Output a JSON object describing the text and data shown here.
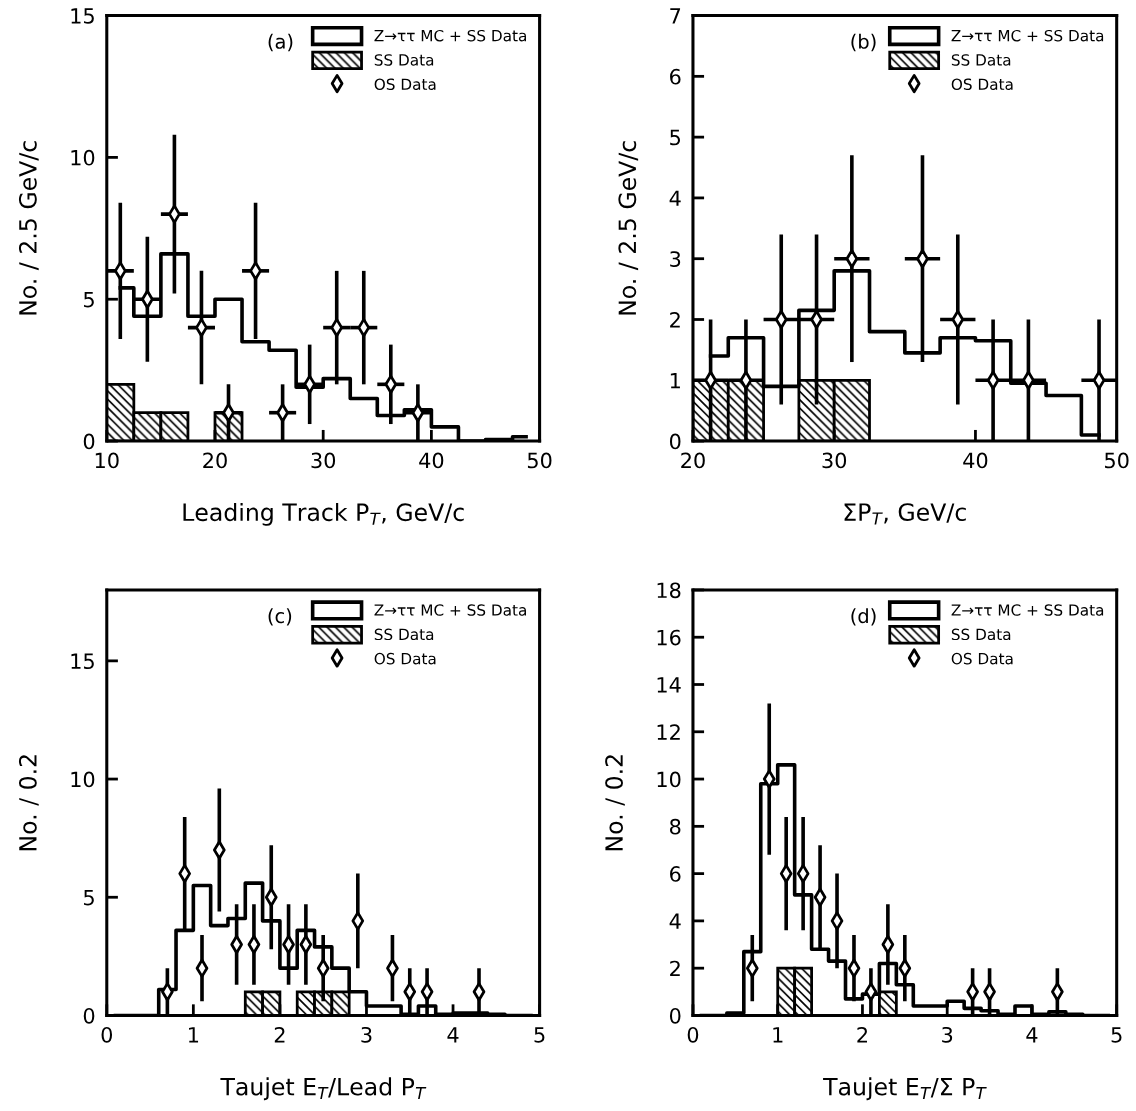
{
  "chart_data": [
    {
      "type": "histogram",
      "xlabel": "Leading Track P$_{T}$, GeV/c",
      "ylabel": "No. / 2.5 GeV/c",
      "annotations": [
        "(a)"
      ],
      "bins": [
        10,
        12.5,
        15,
        17.5,
        20,
        22.5,
        25,
        27.5,
        30,
        32.5,
        35,
        37.5,
        40,
        42.5,
        45,
        47.5,
        50
      ],
      "series": [
        {
          "name": "Z→ττ MC + SS Data",
          "type": "step",
          "color": "#000000",
          "x": [
            11.25,
            13.75,
            16.25,
            18.75,
            21.25,
            23.75,
            26.25,
            28.75,
            31.25,
            33.75,
            36.25,
            38.75,
            41.25,
            43.75,
            46.25,
            48.75
          ],
          "values": [
            5.4,
            4.4,
            6.6,
            4.4,
            5.0,
            3.5,
            3.2,
            1.9,
            2.2,
            1.5,
            0.9,
            1.1,
            0.5,
            0,
            0.05,
            0.15
          ]
        },
        {
          "name": "SS Data",
          "type": "histogram",
          "color": "#000000",
          "values": [
            2,
            1,
            1,
            0,
            1,
            0,
            0,
            0,
            0,
            0,
            0,
            0,
            0,
            0,
            0,
            0
          ]
        },
        {
          "name": "OS Data",
          "type": "scatter",
          "color": "#000000",
          "marker": "diamond",
          "x": [
            11.25,
            13.75,
            16.25,
            18.75,
            21.25,
            23.75,
            26.25,
            28.75,
            31.25,
            33.75,
            36.25,
            38.75
          ],
          "values": [
            6,
            5,
            8,
            4,
            1,
            6,
            1,
            2,
            4,
            4,
            2,
            1
          ],
          "errors": [
            2.4,
            2.2,
            2.8,
            2,
            1,
            2.4,
            1,
            1.4,
            2,
            2,
            1.4,
            1
          ],
          "xerrors": [
            1.25,
            1.25,
            1.25,
            1.25,
            1.25,
            1.25,
            1.25,
            1.25,
            1.25,
            1.25,
            1.25,
            1.25
          ]
        }
      ],
      "xlim": [
        10,
        50
      ],
      "ylim": [
        0,
        15
      ],
      "xticks": [
        10,
        20,
        30,
        40,
        50
      ],
      "yticks": [
        0,
        5,
        10,
        15
      ],
      "legend": "top right",
      "grid": false
    },
    {
      "type": "histogram",
      "xlabel": "ΣP$_{T}$, GeV/c",
      "ylabel": "No. / 2.5 GeV/c",
      "annotations": [
        "(b)"
      ],
      "bins": [
        20,
        22.5,
        25,
        27.5,
        30,
        32.5,
        35,
        37.5,
        40,
        42.5,
        45,
        47.5,
        50
      ],
      "series": [
        {
          "name": "Z→ττ MC + SS Data",
          "type": "step",
          "color": "#000000",
          "x": [
            21.25,
            23.75,
            26.25,
            28.75,
            31.25,
            33.75,
            36.25,
            38.75,
            41.25,
            43.75,
            46.25,
            48.75
          ],
          "values": [
            1.4,
            1.7,
            0.9,
            2.15,
            2.8,
            1.8,
            1.45,
            1.7,
            1.65,
            0.95,
            0.75,
            0.1
          ]
        },
        {
          "name": "SS Data",
          "type": "histogram",
          "color": "#000000",
          "values": [
            1,
            1,
            0,
            1,
            1,
            0,
            0,
            0,
            0,
            0,
            0,
            0
          ]
        },
        {
          "name": "OS Data",
          "type": "scatter",
          "color": "#000000",
          "marker": "diamond",
          "x": [
            21.25,
            23.75,
            26.25,
            28.75,
            31.25,
            36.25,
            38.75,
            41.25,
            43.75,
            48.75
          ],
          "values": [
            1,
            1,
            2,
            2,
            3,
            3,
            2,
            1,
            1,
            1
          ],
          "errors": [
            1,
            1,
            1.4,
            1.4,
            1.7,
            1.7,
            1.4,
            1,
            1,
            1
          ],
          "xerrors": [
            1.25,
            1.25,
            1.25,
            1.25,
            1.25,
            1.25,
            1.25,
            1.25,
            1.25,
            1.25
          ]
        }
      ],
      "xlim": [
        20,
        50
      ],
      "ylim": [
        0,
        7
      ],
      "xticks": [
        20,
        30,
        40,
        50
      ],
      "yticks": [
        0,
        1,
        2,
        3,
        4,
        5,
        6,
        7
      ],
      "legend": "top right",
      "grid": false
    },
    {
      "type": "histogram",
      "xlabel": "Taujet E$_{T}$/Lead P$_{T}$",
      "ylabel": "No. / 0.2",
      "annotations": [
        "(c)"
      ],
      "bins": [
        0,
        0.2,
        0.4,
        0.6,
        0.8,
        1.0,
        1.2,
        1.4,
        1.6,
        1.8,
        2.0,
        2.2,
        2.4,
        2.6,
        2.8,
        3.0,
        3.2,
        3.4,
        3.6,
        3.8,
        4.0,
        4.2,
        4.4,
        4.6,
        4.8,
        5.0
      ],
      "series": [
        {
          "name": "Z→ττ MC + SS Data",
          "type": "step",
          "color": "#000000",
          "x": [
            0.1,
            0.3,
            0.5,
            0.7,
            0.9,
            1.1,
            1.3,
            1.5,
            1.7,
            1.9,
            2.1,
            2.3,
            2.5,
            2.7,
            2.9,
            3.1,
            3.3,
            3.5,
            3.7,
            3.9,
            4.1,
            4.3,
            4.5,
            4.7,
            4.9
          ],
          "values": [
            0,
            0,
            0,
            1.1,
            3.6,
            5.5,
            3.8,
            4.1,
            5.6,
            4.0,
            2.0,
            3.6,
            2.9,
            2.0,
            1.0,
            0.4,
            0.4,
            0.05,
            0.4,
            0.05,
            0.1,
            0.1,
            0.05,
            0,
            0
          ]
        },
        {
          "name": "SS Data",
          "type": "histogram",
          "color": "#000000",
          "values": [
            0,
            0,
            0,
            0,
            0,
            0,
            0,
            0,
            1,
            1,
            0,
            1,
            1,
            1,
            0,
            0,
            0,
            0,
            0,
            0,
            0,
            0,
            0,
            0,
            0
          ]
        },
        {
          "name": "OS Data",
          "type": "scatter",
          "color": "#000000",
          "marker": "diamond",
          "x": [
            0.7,
            0.9,
            1.1,
            1.3,
            1.5,
            1.7,
            1.9,
            2.1,
            2.3,
            2.5,
            2.9,
            3.3,
            3.5,
            3.7,
            4.3
          ],
          "values": [
            1,
            6,
            2,
            7,
            3,
            3,
            5,
            3,
            3,
            2,
            4,
            2,
            1,
            1,
            1
          ],
          "errors": [
            1,
            2.4,
            1.4,
            2.6,
            1.7,
            1.7,
            2.2,
            1.7,
            1.7,
            1.4,
            2,
            1.4,
            1,
            1,
            1
          ]
        }
      ],
      "xlim": [
        0,
        5
      ],
      "ylim": [
        0,
        18
      ],
      "xticks": [
        0,
        1,
        2,
        3,
        4,
        5
      ],
      "yticks": [
        0,
        5,
        10,
        15
      ],
      "legend": "top right",
      "grid": false
    },
    {
      "type": "histogram",
      "xlabel": "Taujet E$_{T}$/Σ P$_{T}$",
      "ylabel": "No. / 0.2",
      "annotations": [
        "(d)"
      ],
      "bins": [
        0,
        0.2,
        0.4,
        0.6,
        0.8,
        1.0,
        1.2,
        1.4,
        1.6,
        1.8,
        2.0,
        2.2,
        2.4,
        2.6,
        2.8,
        3.0,
        3.2,
        3.4,
        3.6,
        3.8,
        4.0,
        4.2,
        4.4,
        4.6,
        4.8,
        5.0
      ],
      "series": [
        {
          "name": "Z→ττ MC + SS Data",
          "type": "step",
          "color": "#000000",
          "x": [
            0.1,
            0.3,
            0.5,
            0.7,
            0.9,
            1.1,
            1.3,
            1.5,
            1.7,
            1.9,
            2.1,
            2.3,
            2.5,
            2.7,
            2.9,
            3.1,
            3.3,
            3.5,
            3.7,
            3.9,
            4.1,
            4.3,
            4.5,
            4.7,
            4.9
          ],
          "values": [
            0,
            0,
            0.1,
            2.7,
            9.8,
            10.6,
            5.1,
            2.8,
            2.3,
            0.7,
            0.9,
            2.2,
            1.3,
            0.4,
            0.4,
            0.6,
            0.3,
            0.2,
            0.05,
            0.4,
            0.05,
            0.15,
            0.05,
            0,
            0
          ]
        },
        {
          "name": "SS Data",
          "type": "histogram",
          "color": "#000000",
          "values": [
            0,
            0,
            0,
            0,
            0,
            2,
            2,
            0,
            0,
            0,
            0,
            1,
            0,
            0,
            0,
            0,
            0,
            0,
            0,
            0,
            0,
            0,
            0,
            0,
            0
          ]
        },
        {
          "name": "OS Data",
          "type": "scatter",
          "color": "#000000",
          "marker": "diamond",
          "x": [
            0.7,
            0.9,
            1.1,
            1.3,
            1.5,
            1.7,
            1.9,
            2.1,
            2.3,
            2.5,
            3.3,
            3.5,
            4.3
          ],
          "values": [
            2,
            10,
            6,
            6,
            5,
            4,
            2,
            1,
            3,
            2,
            1,
            1,
            1
          ],
          "errors": [
            1.4,
            3.2,
            2.4,
            2.4,
            2.2,
            2,
            1.4,
            1,
            1.7,
            1.4,
            1,
            1,
            1
          ]
        }
      ],
      "xlim": [
        0,
        5
      ],
      "ylim": [
        0,
        18
      ],
      "xticks": [
        0,
        1,
        2,
        3,
        4,
        5
      ],
      "yticks": [
        0,
        2,
        4,
        6,
        8,
        10,
        12,
        14,
        16,
        18
      ],
      "legend": "top right",
      "grid": false
    }
  ]
}
